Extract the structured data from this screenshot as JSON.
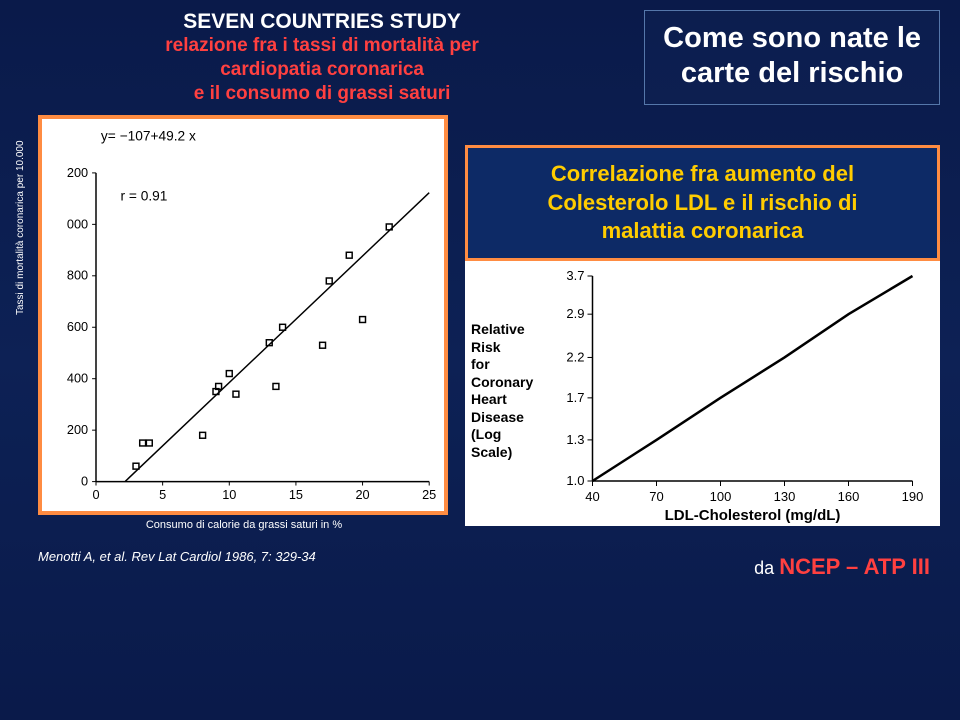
{
  "header": {
    "title": "SEVEN COUNTRIES STUDY",
    "sub1": "relazione fra i tassi di mortalità per",
    "sub2": "cardiopatia coronarica",
    "sub3": "e il consumo di grassi saturi"
  },
  "nate_box": {
    "line1": "Come sono nate le",
    "line2": "carte del rischio"
  },
  "scatter": {
    "equation": "y= −107+49.2 x",
    "r_label": "r = 0.91",
    "ylabel": "Tassi di mortalità coronarica per 10.000",
    "xlabel": "Consumo di calorie da grassi saturi in %",
    "xlim": [
      0,
      25
    ],
    "xtick_step": 5,
    "ylim": [
      0,
      1200
    ],
    "ytick_step": 200,
    "y_tick_labels": [
      "0",
      "200",
      "400",
      "600",
      "800",
      "000",
      "200"
    ],
    "points": [
      [
        3,
        60
      ],
      [
        3.5,
        150
      ],
      [
        4,
        150
      ],
      [
        8,
        180
      ],
      [
        9,
        350
      ],
      [
        9.2,
        370
      ],
      [
        10,
        420
      ],
      [
        10.5,
        340
      ],
      [
        13,
        540
      ],
      [
        13.5,
        370
      ],
      [
        14,
        600
      ],
      [
        17,
        530
      ],
      [
        17.5,
        780
      ],
      [
        19,
        880
      ],
      [
        20,
        630
      ],
      [
        22,
        990
      ]
    ],
    "line_color": "#000000",
    "point_color": "#000000",
    "bg": "#ffffff",
    "border": "#ff8c42",
    "axis_font": 13
  },
  "citation": "Menotti A, et al. Rev Lat Cardiol 1986, 7: 329-34",
  "corr_banner": {
    "l1": "Correlazione fra aumento del",
    "l2": "Colesterolo LDL e il rischio di",
    "l3": "malattia coronarica",
    "bg": "#0d2a66",
    "border": "#ff8c42",
    "text": "#ffcc00"
  },
  "line_chart": {
    "yaxis_label_lines": [
      "Relative",
      "Risk",
      "for",
      "Coronary",
      "Heart",
      "Disease",
      "(Log Scale)"
    ],
    "xlabel": "LDL-Cholesterol (mg/dL)",
    "xlim": [
      40,
      190
    ],
    "xtick_step": 30,
    "yticks": [
      1.0,
      1.3,
      1.7,
      2.2,
      2.9,
      3.7
    ],
    "line_points": [
      [
        40,
        1.0
      ],
      [
        70,
        1.3
      ],
      [
        100,
        1.7
      ],
      [
        130,
        2.2
      ],
      [
        160,
        2.9
      ],
      [
        190,
        3.7
      ]
    ],
    "line_color": "#000000",
    "bg": "#ffffff",
    "axis_font": 13
  },
  "source": {
    "da": "da ",
    "text": "NCEP – ATP III",
    "color": "#ff4040"
  }
}
